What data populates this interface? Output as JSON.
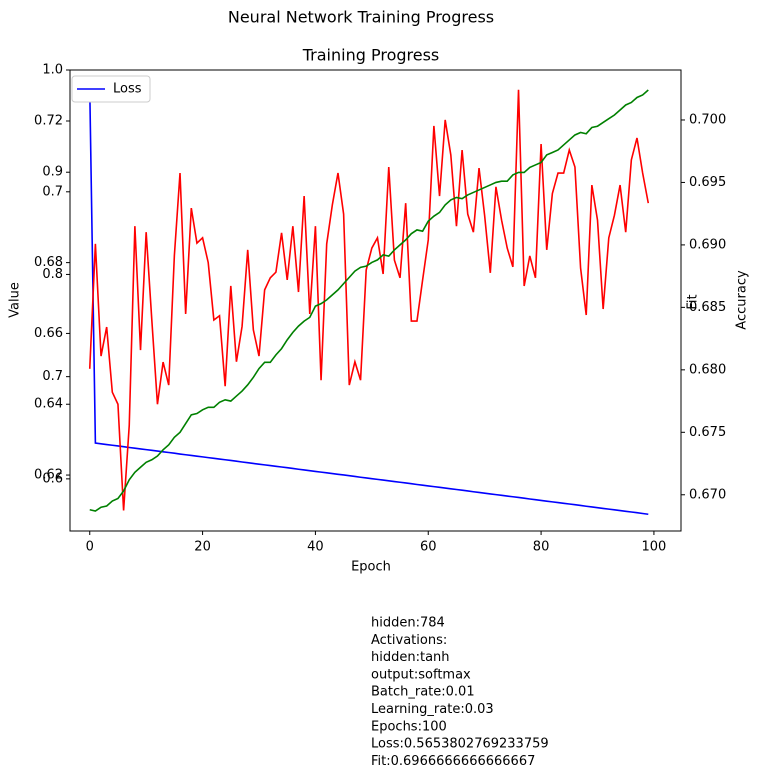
{
  "chart_data": {
    "type": "line",
    "suptitle": "Neural Network Training Progress",
    "title": "Training Progress",
    "xlabel": "Epoch",
    "ylabel": "Value",
    "y2label": "Fit",
    "y3label": "Accuracy",
    "x": [
      0,
      1,
      2,
      3,
      4,
      5,
      6,
      7,
      8,
      9,
      10,
      11,
      12,
      13,
      14,
      15,
      16,
      17,
      18,
      19,
      20,
      21,
      22,
      23,
      24,
      25,
      26,
      27,
      28,
      29,
      30,
      31,
      32,
      33,
      34,
      35,
      36,
      37,
      38,
      39,
      40,
      41,
      42,
      43,
      44,
      45,
      46,
      47,
      48,
      49,
      50,
      51,
      52,
      53,
      54,
      55,
      56,
      57,
      58,
      59,
      60,
      61,
      62,
      63,
      64,
      65,
      66,
      67,
      68,
      69,
      70,
      71,
      72,
      73,
      74,
      75,
      76,
      77,
      78,
      79,
      80,
      81,
      82,
      83,
      84,
      85,
      86,
      87,
      88,
      89,
      90,
      91,
      92,
      93,
      94,
      95,
      96,
      97,
      98,
      99
    ],
    "xlim": [
      -3.5,
      104.8
    ],
    "xticks": [
      0,
      20,
      40,
      60,
      80,
      100
    ],
    "ylim": [
      0.549,
      1.0
    ],
    "yticks": [
      0.6,
      0.7,
      0.8,
      0.9,
      {
        "value": 1,
        "label": "1.0"
      }
    ],
    "y2lim": [
      0.6042,
      0.7344
    ],
    "y2ticks": [
      0.62,
      0.64,
      0.66,
      0.68,
      0.7,
      0.72
    ],
    "y2color": "red",
    "y3lim": [
      0.6671,
      0.704
    ],
    "y3ticks": [
      {
        "value": 0.67,
        "label": "0.670"
      },
      0.675,
      {
        "value": 0.68,
        "label": "0.680"
      },
      0.685,
      {
        "value": 0.69,
        "label": "0.690"
      },
      0.695,
      {
        "value": 0.7,
        "label": "0.700"
      }
    ],
    "y3color": "green",
    "legend": "upper left",
    "series": [
      {
        "name": "Loss",
        "color": "blue",
        "axis": "y",
        "values": [
          0.982,
          0.635,
          0.6343,
          0.6336,
          0.6329,
          0.6322,
          0.6315,
          0.6307,
          0.63,
          0.6293,
          0.6286,
          0.6279,
          0.6272,
          0.6265,
          0.6258,
          0.6251,
          0.6243,
          0.6236,
          0.6229,
          0.6222,
          0.6215,
          0.6208,
          0.6201,
          0.6194,
          0.6187,
          0.618,
          0.6173,
          0.6165,
          0.6158,
          0.6151,
          0.6144,
          0.6137,
          0.613,
          0.6123,
          0.6116,
          0.6109,
          0.6102,
          0.6094,
          0.6087,
          0.608,
          0.6073,
          0.6066,
          0.6059,
          0.6052,
          0.6045,
          0.6038,
          0.6031,
          0.6024,
          0.6016,
          0.6009,
          0.6002,
          0.5995,
          0.5988,
          0.5981,
          0.5974,
          0.5967,
          0.596,
          0.5953,
          0.5945,
          0.5938,
          0.5931,
          0.5924,
          0.5917,
          0.591,
          0.5903,
          0.5896,
          0.5889,
          0.5882,
          0.5874,
          0.5867,
          0.586,
          0.5853,
          0.5846,
          0.5839,
          0.5832,
          0.5825,
          0.5818,
          0.5811,
          0.5803,
          0.5796,
          0.5789,
          0.5782,
          0.5775,
          0.5768,
          0.5761,
          0.5754,
          0.5747,
          0.574,
          0.5732,
          0.5725,
          0.5718,
          0.5711,
          0.5704,
          0.5697,
          0.569,
          0.5683,
          0.5676,
          0.5669,
          0.5661,
          0.5654
        ]
      },
      {
        "color": "red",
        "axis": "y2",
        "values": [
          0.65,
          0.6853,
          0.6536,
          0.6618,
          0.6434,
          0.64,
          0.61,
          0.634,
          0.6903,
          0.6553,
          0.6886,
          0.6638,
          0.64,
          0.6519,
          0.6454,
          0.682,
          0.7053,
          0.6655,
          0.6954,
          0.6855,
          0.687,
          0.68,
          0.6638,
          0.665,
          0.6451,
          0.6734,
          0.652,
          0.662,
          0.6836,
          0.661,
          0.6536,
          0.6723,
          0.6757,
          0.6773,
          0.6884,
          0.6751,
          0.6903,
          0.6717,
          0.6988,
          0.6655,
          0.6903,
          0.6468,
          0.6853,
          0.6963,
          0.7053,
          0.6937,
          0.6454,
          0.652,
          0.6468,
          0.6779,
          0.6841,
          0.687,
          0.6768,
          0.707,
          0.6807,
          0.6757,
          0.6968,
          0.6635,
          0.6635,
          0.6751,
          0.6864,
          0.7186,
          0.6988,
          0.7203,
          0.7104,
          0.6903,
          0.7118,
          0.6937,
          0.6886,
          0.7067,
          0.6932,
          0.6771,
          0.7014,
          0.692,
          0.6841,
          0.6788,
          0.7288,
          0.6734,
          0.6819,
          0.6757,
          0.7135,
          0.6836,
          0.6995,
          0.7053,
          0.7053,
          0.7118,
          0.707,
          0.6785,
          0.6652,
          0.7019,
          0.692,
          0.6669,
          0.687,
          0.6934,
          0.7019,
          0.6886,
          0.709,
          0.7152,
          0.7053,
          0.6968
        ]
      },
      {
        "color": "green",
        "axis": "y3",
        "values": [
          0.6688,
          0.6687,
          0.669,
          0.6691,
          0.6695,
          0.6697,
          0.6703,
          0.6712,
          0.6718,
          0.6722,
          0.6726,
          0.6728,
          0.6731,
          0.6736,
          0.674,
          0.6746,
          0.675,
          0.6757,
          0.6764,
          0.6765,
          0.6768,
          0.677,
          0.677,
          0.6774,
          0.6776,
          0.6775,
          0.6779,
          0.6783,
          0.6788,
          0.6794,
          0.6801,
          0.6806,
          0.6806,
          0.6812,
          0.6817,
          0.6824,
          0.683,
          0.6835,
          0.6839,
          0.6842,
          0.6851,
          0.6853,
          0.6856,
          0.686,
          0.6864,
          0.6869,
          0.6874,
          0.6879,
          0.6882,
          0.6883,
          0.6886,
          0.6888,
          0.6892,
          0.6891,
          0.6896,
          0.69,
          0.6904,
          0.6909,
          0.6912,
          0.6911,
          0.6919,
          0.6923,
          0.6926,
          0.6932,
          0.6936,
          0.6938,
          0.6937,
          0.694,
          0.6942,
          0.6944,
          0.6946,
          0.6948,
          0.695,
          0.6951,
          0.6951,
          0.6956,
          0.6958,
          0.6958,
          0.6962,
          0.6964,
          0.6966,
          0.6972,
          0.6974,
          0.6976,
          0.698,
          0.6984,
          0.6988,
          0.699,
          0.6989,
          0.6994,
          0.6995,
          0.6998,
          0.7001,
          0.7004,
          0.7008,
          0.7012,
          0.7014,
          0.7018,
          0.702,
          0.7024
        ]
      }
    ],
    "notes": [
      "hidden:784",
      "Activations:",
      "hidden:tanh",
      "output:softmax",
      "Batch_rate:0.01",
      "Learning_rate:0.03",
      "Epochs:100",
      "Loss:0.5653802769233759",
      "Fit:0.6966666666666667"
    ]
  }
}
